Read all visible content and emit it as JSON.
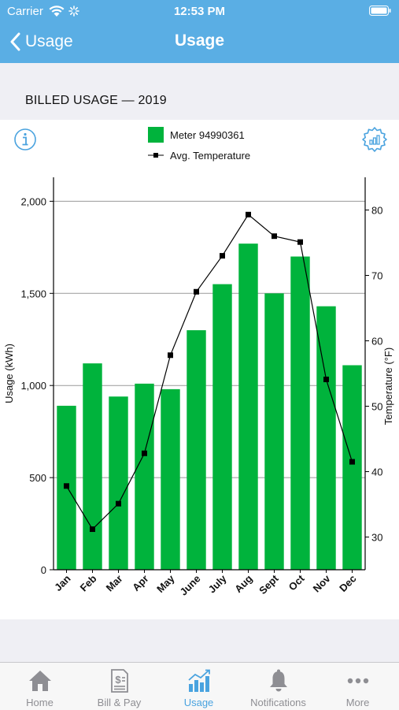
{
  "status_bar": {
    "carrier": "Carrier",
    "time": "12:53 PM"
  },
  "nav": {
    "back_label": "Usage",
    "title": "Usage"
  },
  "section": {
    "title": "BILLED USAGE — 2019"
  },
  "legend": {
    "meter_label": "Meter 94990361",
    "temperature_label": "Avg. Temperature"
  },
  "colors": {
    "header": "#5aaee4",
    "bar": "#00b33c",
    "active_tab": "#4aa3df",
    "inactive_tab": "#8e8e93"
  },
  "chart_data": {
    "type": "bar",
    "categories": [
      "Jan",
      "Feb",
      "Mar",
      "Apr",
      "May",
      "June",
      "July",
      "Aug",
      "Sept",
      "Oct",
      "Nov",
      "Dec"
    ],
    "series": [
      {
        "name": "Meter 94990361",
        "type": "bar",
        "axis": "left",
        "values": [
          890,
          1120,
          940,
          1010,
          980,
          1300,
          1550,
          1770,
          1500,
          1700,
          1430,
          1110
        ]
      },
      {
        "name": "Avg. Temperature",
        "type": "line",
        "axis": "right",
        "values": [
          37.8,
          31.2,
          35.1,
          42.8,
          57.8,
          67.5,
          73.0,
          79.3,
          76.0,
          75.1,
          54.1,
          41.5
        ]
      }
    ],
    "ylabel": "Usage (kWh)",
    "y2label": "Temperature (°F)",
    "ylim": [
      0,
      2130
    ],
    "y2lim": [
      25,
      85
    ],
    "yticks": [
      0,
      500,
      1000,
      1500,
      2000
    ],
    "yticklabels": [
      "0",
      "500",
      "1,000",
      "1,500",
      "2,000"
    ],
    "y2ticks": [
      30,
      40,
      50,
      60,
      70,
      80
    ],
    "y2ticklabels": [
      "30",
      "40",
      "50",
      "60",
      "70",
      "80"
    ],
    "grid": true,
    "legend_position": "top-center"
  },
  "tabs": [
    {
      "label": "Home",
      "icon": "home-icon",
      "active": false
    },
    {
      "label": "Bill & Pay",
      "icon": "bill-icon",
      "active": false
    },
    {
      "label": "Usage",
      "icon": "usage-chart-icon",
      "active": true
    },
    {
      "label": "Notifications",
      "icon": "bell-icon",
      "active": false
    },
    {
      "label": "More",
      "icon": "more-icon",
      "active": false
    }
  ]
}
